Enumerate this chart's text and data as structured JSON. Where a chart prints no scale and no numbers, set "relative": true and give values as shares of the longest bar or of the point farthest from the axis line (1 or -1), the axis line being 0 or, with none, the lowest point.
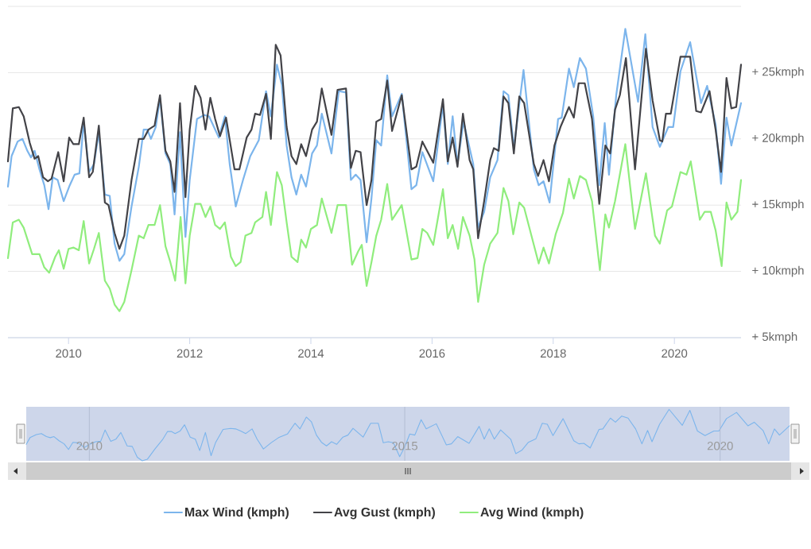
{
  "chart_data": [
    {
      "type": "line",
      "series": [
        {
          "name": "Max Wind (kmph)",
          "color": "#7cb5ec",
          "x": [
            2009.0,
            2009.06,
            2009.16,
            2009.24,
            2009.32,
            2009.38,
            2009.44,
            2009.52,
            2009.6,
            2009.67,
            2009.74,
            2009.82,
            2009.92,
            2010.02,
            2010.1,
            2010.18,
            2010.25,
            2010.34,
            2010.42,
            2010.5,
            2010.6,
            2010.68,
            2010.76,
            2010.84,
            2010.92,
            2011.04,
            2011.16,
            2011.24,
            2011.3,
            2011.36,
            2011.44,
            2011.51,
            2011.6,
            2011.68,
            2011.75,
            2011.84,
            2011.93,
            2012.0,
            2012.12,
            2012.24,
            2012.32,
            2012.4,
            2012.48,
            2012.58,
            2012.66,
            2012.76,
            2012.88,
            2013.0,
            2013.14,
            2013.26,
            2013.34,
            2013.44,
            2013.52,
            2013.6,
            2013.68,
            2013.76,
            2013.84,
            2013.92,
            2014.02,
            2014.1,
            2014.18,
            2014.34,
            2014.46,
            2014.58,
            2014.66,
            2014.74,
            2014.82,
            2014.92,
            2015.0,
            2015.08,
            2015.16,
            2015.26,
            2015.34,
            2015.5,
            2015.66,
            2015.74,
            2015.84,
            2016.02,
            2016.18,
            2016.26,
            2016.34,
            2016.42,
            2016.52,
            2016.68,
            2016.76,
            2016.86,
            2016.96,
            2017.08,
            2017.18,
            2017.26,
            2017.35,
            2017.51,
            2017.68,
            2017.76,
            2017.84,
            2017.94,
            2018.08,
            2018.14,
            2018.26,
            2018.34,
            2018.44,
            2018.54,
            2018.66,
            2018.76,
            2018.85,
            2018.92,
            2019.04,
            2019.19,
            2019.4,
            2019.52,
            2019.64,
            2019.76,
            2019.9,
            2019.98,
            2020.1,
            2020.26,
            2020.44,
            2020.54,
            2020.68,
            2020.77,
            2020.86,
            2020.94,
            2021.1
          ],
          "values": [
            16.4,
            18.7,
            19.8,
            20.0,
            19.1,
            18.6,
            19.1,
            17.7,
            16.5,
            14.7,
            17.1,
            16.9,
            15.3,
            16.5,
            17.3,
            17.4,
            21.3,
            17.5,
            18.1,
            20.5,
            15.8,
            15.7,
            12.1,
            10.8,
            11.3,
            14.9,
            17.9,
            20.7,
            20.7,
            20.0,
            20.9,
            23.1,
            18.9,
            18.1,
            14.3,
            20.5,
            12.6,
            16.9,
            21.5,
            21.8,
            21.7,
            20.9,
            20.1,
            21.7,
            18.1,
            14.9,
            16.9,
            18.7,
            19.9,
            23.6,
            21.7,
            25.6,
            24.1,
            19.5,
            17.1,
            15.8,
            17.3,
            16.4,
            18.9,
            19.5,
            21.9,
            18.9,
            23.6,
            23.5,
            16.9,
            17.3,
            16.9,
            12.2,
            15.5,
            19.9,
            19.5,
            24.8,
            21.7,
            23.4,
            16.2,
            16.5,
            19.0,
            16.8,
            22.6,
            18.1,
            21.7,
            18.1,
            21.3,
            18.1,
            13.3,
            14.5,
            17.1,
            18.4,
            23.6,
            23.3,
            19.3,
            25.2,
            17.7,
            16.5,
            16.8,
            15.2,
            21.5,
            21.6,
            25.3,
            23.9,
            26.1,
            25.3,
            21.7,
            16.5,
            21.2,
            17.3,
            23.3,
            28.3,
            22.8,
            27.9,
            20.9,
            19.4,
            20.9,
            20.9,
            25.1,
            27.3,
            22.7,
            24.0,
            21.1,
            16.6,
            21.6,
            19.5,
            22.7
          ]
        },
        {
          "name": "Avg Gust (kmph)",
          "color": "#434348",
          "x": [
            2009.0,
            2009.08,
            2009.18,
            2009.26,
            2009.36,
            2009.44,
            2009.5,
            2009.58,
            2009.66,
            2009.72,
            2009.83,
            2009.92,
            2010.01,
            2010.08,
            2010.17,
            2010.25,
            2010.34,
            2010.4,
            2010.5,
            2010.6,
            2010.66,
            2010.76,
            2010.84,
            2010.92,
            2011.04,
            2011.16,
            2011.24,
            2011.32,
            2011.42,
            2011.51,
            2011.6,
            2011.68,
            2011.75,
            2011.84,
            2011.93,
            2012.0,
            2012.09,
            2012.18,
            2012.26,
            2012.34,
            2012.42,
            2012.5,
            2012.6,
            2012.74,
            2012.82,
            2012.94,
            2013.02,
            2013.08,
            2013.16,
            2013.26,
            2013.34,
            2013.42,
            2013.5,
            2013.6,
            2013.68,
            2013.76,
            2013.84,
            2013.92,
            2014.02,
            2014.1,
            2014.18,
            2014.34,
            2014.44,
            2014.58,
            2014.66,
            2014.74,
            2014.82,
            2014.92,
            2015.0,
            2015.08,
            2015.16,
            2015.26,
            2015.34,
            2015.5,
            2015.66,
            2015.74,
            2015.84,
            2016.02,
            2016.18,
            2016.26,
            2016.34,
            2016.42,
            2016.51,
            2016.62,
            2016.68,
            2016.76,
            2016.86,
            2016.96,
            2017.02,
            2017.1,
            2017.18,
            2017.26,
            2017.35,
            2017.44,
            2017.52,
            2017.68,
            2017.75,
            2017.84,
            2017.93,
            2018.02,
            2018.12,
            2018.26,
            2018.34,
            2018.42,
            2018.52,
            2018.64,
            2018.76,
            2018.86,
            2018.94,
            2019.02,
            2019.1,
            2019.2,
            2019.35,
            2019.53,
            2019.64,
            2019.76,
            2019.8,
            2019.86,
            2019.94,
            2020.1,
            2020.26,
            2020.36,
            2020.44,
            2020.58,
            2020.68,
            2020.77,
            2020.86,
            2020.94,
            2021.02,
            2021.1
          ],
          "values": [
            18.3,
            22.3,
            22.4,
            21.7,
            19.7,
            18.5,
            18.7,
            17.1,
            16.8,
            17.0,
            19.0,
            16.8,
            20.1,
            19.6,
            19.6,
            21.6,
            17.1,
            17.5,
            21.0,
            15.2,
            15.0,
            12.9,
            11.7,
            12.7,
            16.9,
            20.0,
            20.0,
            20.7,
            21.0,
            23.3,
            19.1,
            18.3,
            16.0,
            22.7,
            15.6,
            20.7,
            24.0,
            23.1,
            20.7,
            23.1,
            21.5,
            20.2,
            21.6,
            17.7,
            17.7,
            20.1,
            20.7,
            21.9,
            21.8,
            23.4,
            20.0,
            27.1,
            26.3,
            20.9,
            18.7,
            18.1,
            19.6,
            18.7,
            20.7,
            21.3,
            23.8,
            20.3,
            23.7,
            23.8,
            17.8,
            19.1,
            19.0,
            15.0,
            16.9,
            21.3,
            21.5,
            24.4,
            20.6,
            23.3,
            17.7,
            17.9,
            19.8,
            18.2,
            23.0,
            18.3,
            20.1,
            17.9,
            21.9,
            18.4,
            17.7,
            12.5,
            15.3,
            18.4,
            19.3,
            19.1,
            23.2,
            22.7,
            18.9,
            23.2,
            22.7,
            18.1,
            17.2,
            18.4,
            16.8,
            19.5,
            20.9,
            22.4,
            21.6,
            24.2,
            24.2,
            21.5,
            15.1,
            19.5,
            18.9,
            22.2,
            23.3,
            26.1,
            17.7,
            26.8,
            22.9,
            19.9,
            19.8,
            21.9,
            21.9,
            26.2,
            26.2,
            22.1,
            22.0,
            23.6,
            20.7,
            17.5,
            24.6,
            22.3,
            22.4,
            25.6
          ]
        },
        {
          "name": "Avg Wind (kmph)",
          "color": "#90ed7d",
          "x": [
            2009.0,
            2009.08,
            2009.18,
            2009.26,
            2009.4,
            2009.52,
            2009.6,
            2009.68,
            2009.78,
            2009.84,
            2009.92,
            2010.0,
            2010.08,
            2010.17,
            2010.25,
            2010.34,
            2010.42,
            2010.5,
            2010.6,
            2010.68,
            2010.76,
            2010.84,
            2010.92,
            2011.04,
            2011.16,
            2011.24,
            2011.32,
            2011.42,
            2011.51,
            2011.6,
            2011.68,
            2011.76,
            2011.85,
            2011.93,
            2012.0,
            2012.09,
            2012.18,
            2012.26,
            2012.34,
            2012.42,
            2012.5,
            2012.58,
            2012.68,
            2012.76,
            2012.84,
            2012.92,
            2013.02,
            2013.08,
            2013.2,
            2013.26,
            2013.34,
            2013.44,
            2013.52,
            2013.6,
            2013.68,
            2013.78,
            2013.84,
            2013.92,
            2014.0,
            2014.1,
            2014.18,
            2014.34,
            2014.44,
            2014.58,
            2014.68,
            2014.78,
            2014.84,
            2014.92,
            2015.0,
            2015.08,
            2015.16,
            2015.26,
            2015.34,
            2015.5,
            2015.66,
            2015.76,
            2015.84,
            2015.92,
            2016.02,
            2016.18,
            2016.26,
            2016.34,
            2016.43,
            2016.51,
            2016.62,
            2016.7,
            2016.76,
            2016.86,
            2016.96,
            2017.08,
            2017.18,
            2017.26,
            2017.34,
            2017.44,
            2017.52,
            2017.64,
            2017.76,
            2017.84,
            2017.93,
            2018.04,
            2018.16,
            2018.26,
            2018.34,
            2018.44,
            2018.54,
            2018.64,
            2018.77,
            2018.86,
            2018.92,
            2019.02,
            2019.19,
            2019.35,
            2019.53,
            2019.68,
            2019.76,
            2019.88,
            2019.96,
            2020.1,
            2020.2,
            2020.27,
            2020.42,
            2020.5,
            2020.6,
            2020.68,
            2020.78,
            2020.86,
            2020.94,
            2021.04,
            2021.1
          ],
          "values": [
            11.0,
            13.7,
            13.9,
            13.3,
            11.3,
            11.3,
            10.3,
            9.9,
            11.1,
            11.6,
            10.2,
            11.7,
            11.8,
            11.6,
            13.8,
            10.6,
            11.7,
            12.9,
            9.3,
            8.7,
            7.5,
            7.0,
            7.7,
            10.1,
            12.7,
            12.5,
            13.5,
            13.5,
            15.0,
            11.9,
            10.7,
            9.3,
            14.1,
            9.1,
            12.7,
            15.1,
            15.1,
            14.1,
            14.9,
            13.5,
            13.2,
            13.7,
            11.1,
            10.4,
            10.7,
            12.7,
            12.9,
            13.7,
            14.1,
            16.0,
            13.5,
            17.5,
            16.5,
            13.7,
            11.1,
            10.7,
            12.4,
            11.8,
            13.2,
            13.5,
            15.5,
            12.9,
            15.0,
            15.0,
            10.5,
            11.5,
            12.0,
            8.9,
            10.7,
            12.7,
            13.9,
            16.6,
            13.9,
            15.0,
            10.9,
            11.0,
            13.2,
            12.9,
            12.0,
            16.2,
            12.5,
            13.5,
            11.7,
            14.1,
            12.7,
            10.9,
            7.7,
            10.5,
            12.1,
            12.9,
            16.3,
            15.3,
            12.8,
            15.2,
            14.8,
            12.7,
            10.6,
            11.8,
            10.6,
            12.8,
            14.4,
            17.0,
            15.5,
            17.2,
            16.9,
            15.3,
            10.1,
            14.3,
            13.3,
            15.3,
            19.6,
            13.2,
            17.4,
            12.7,
            12.1,
            14.6,
            14.9,
            17.5,
            17.3,
            18.3,
            13.9,
            14.5,
            14.5,
            13.1,
            10.4,
            15.2,
            13.9,
            14.5,
            16.9
          ]
        }
      ],
      "xlim": [
        2009.0,
        2021.1
      ],
      "xticks": [
        2010,
        2012,
        2014,
        2016,
        2018,
        2020
      ],
      "ylim": [
        5,
        30
      ],
      "yticks": [
        {
          "value": 5,
          "label": "+ 5kmph"
        },
        {
          "value": 10,
          "label": "+ 10kmph"
        },
        {
          "value": 15,
          "label": "+ 15kmph"
        },
        {
          "value": 20,
          "label": "+ 20kmph"
        },
        {
          "value": 25,
          "label": "+ 25kmph"
        },
        {
          "value": 30,
          "label": null
        }
      ],
      "grid": "y",
      "legend": "bottom",
      "marker": "none"
    },
    {
      "type": "line",
      "series": [
        {
          "color": "#7cb5ec",
          "x": [
            2009.0,
            2009.06,
            2009.16,
            2009.24,
            2009.32,
            2009.38,
            2009.44,
            2009.52,
            2009.6,
            2009.67,
            2009.74,
            2009.82,
            2009.92,
            2010.02,
            2010.1,
            2010.18,
            2010.25,
            2010.34,
            2010.42,
            2010.5,
            2010.6,
            2010.68,
            2010.76,
            2010.84,
            2010.92,
            2011.04,
            2011.16,
            2011.24,
            2011.3,
            2011.36,
            2011.44,
            2011.51,
            2011.6,
            2011.68,
            2011.75,
            2011.84,
            2011.93,
            2012.0,
            2012.12,
            2012.24,
            2012.32,
            2012.4,
            2012.48,
            2012.58,
            2012.66,
            2012.76,
            2012.88,
            2013.0,
            2013.14,
            2013.26,
            2013.34,
            2013.44,
            2013.52,
            2013.6,
            2013.68,
            2013.76,
            2013.84,
            2013.92,
            2014.02,
            2014.1,
            2014.18,
            2014.34,
            2014.46,
            2014.58,
            2014.66,
            2014.74,
            2014.82,
            2014.92,
            2015.0,
            2015.08,
            2015.16,
            2015.26,
            2015.34,
            2015.5,
            2015.66,
            2015.74,
            2015.84,
            2016.02,
            2016.18,
            2016.26,
            2016.34,
            2016.42,
            2016.52,
            2016.68,
            2016.76,
            2016.86,
            2016.96,
            2017.08,
            2017.18,
            2017.26,
            2017.35,
            2017.51,
            2017.68,
            2017.76,
            2017.84,
            2017.94,
            2018.08,
            2018.14,
            2018.26,
            2018.34,
            2018.44,
            2018.54,
            2018.66,
            2018.76,
            2018.85,
            2018.92,
            2019.04,
            2019.19,
            2019.4,
            2019.52,
            2019.64,
            2019.76,
            2019.9,
            2019.98,
            2020.1,
            2020.26,
            2020.44,
            2020.54,
            2020.68,
            2020.77,
            2020.86,
            2020.94,
            2021.1
          ],
          "values": [
            0.32,
            0.45,
            0.51,
            0.53,
            0.47,
            0.45,
            0.47,
            0.39,
            0.33,
            0.22,
            0.36,
            0.35,
            0.26,
            0.33,
            0.37,
            0.38,
            0.6,
            0.38,
            0.42,
            0.55,
            0.29,
            0.28,
            0.07,
            0,
            0.03,
            0.23,
            0.41,
            0.57,
            0.57,
            0.53,
            0.58,
            0.7,
            0.46,
            0.42,
            0.2,
            0.55,
            0.1,
            0.35,
            0.61,
            0.63,
            0.62,
            0.58,
            0.53,
            0.62,
            0.42,
            0.23,
            0.35,
            0.45,
            0.52,
            0.73,
            0.62,
            0.85,
            0.76,
            0.5,
            0.36,
            0.29,
            0.37,
            0.32,
            0.46,
            0.5,
            0.63,
            0.46,
            0.73,
            0.73,
            0.35,
            0.37,
            0.35,
            0.08,
            0.27,
            0.52,
            0.5,
            0.8,
            0.62,
            0.72,
            0.31,
            0.33,
            0.47,
            0.34,
            0.67,
            0.42,
            0.62,
            0.42,
            0.6,
            0.42,
            0.14,
            0.21,
            0.36,
            0.43,
            0.73,
            0.71,
            0.49,
            0.82,
            0.39,
            0.33,
            0.34,
            0.25,
            0.61,
            0.62,
            0.83,
            0.75,
            0.87,
            0.83,
            0.62,
            0.33,
            0.59,
            0.37,
            0.71,
            1,
            0.69,
            0.98,
            0.58,
            0.49,
            0.58,
            0.58,
            0.82,
            0.94,
            0.68,
            0.75,
            0.59,
            0.33,
            0.62,
            0.5,
            0.68
          ]
        }
      ],
      "xlim": [
        2009.0,
        2021.1
      ],
      "xticks": [
        2010,
        2015,
        2020
      ],
      "relative": true,
      "tick_labels": "x",
      "grid": "x",
      "marker": "none",
      "bands": [
        {
          "axis": "x",
          "from": 2009.0,
          "to": 2021.1,
          "color": "#cdd6ea"
        }
      ]
    }
  ]
}
